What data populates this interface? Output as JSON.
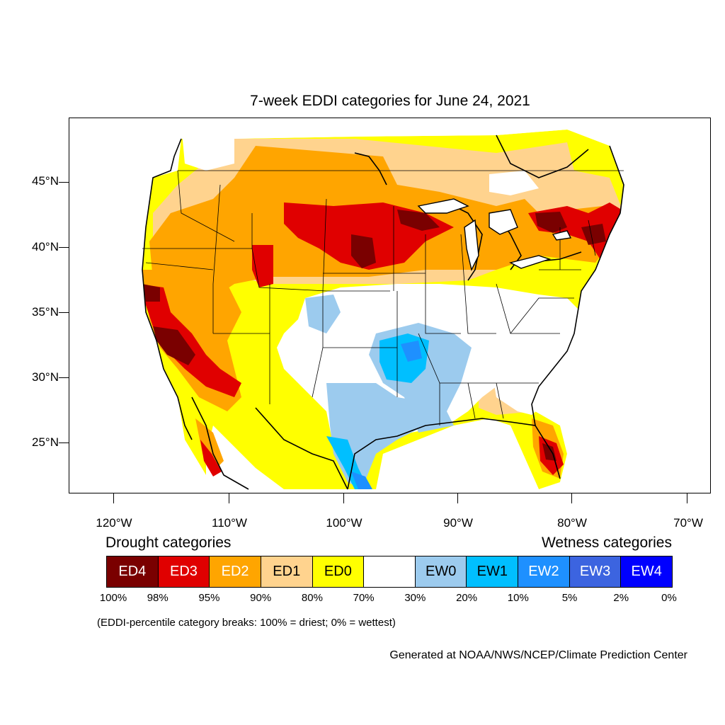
{
  "title": "7-week EDDI categories for June 24, 2021",
  "lat_labels": [
    "45°N",
    "40°N",
    "35°N",
    "30°N",
    "25°N"
  ],
  "lon_labels": [
    "120°W",
    "110°W",
    "100°W",
    "90°W",
    "80°W",
    "70°W"
  ],
  "legend": {
    "drought_heading": "Drought categories",
    "wetness_heading": "Wetness categories",
    "categories": [
      {
        "label": "ED4",
        "color": "#7a0000",
        "text_color": "#ffffff"
      },
      {
        "label": "ED3",
        "color": "#e00000",
        "text_color": "#ffffff"
      },
      {
        "label": "ED2",
        "color": "#ffa500",
        "text_color": "#ffffff"
      },
      {
        "label": "ED1",
        "color": "#ffd38e",
        "text_color": "#000000"
      },
      {
        "label": "ED0",
        "color": "#ffff00",
        "text_color": "#000000"
      },
      {
        "label": "",
        "color": "#ffffff",
        "text_color": "#000000"
      },
      {
        "label": "EW0",
        "color": "#9ccbee",
        "text_color": "#000000"
      },
      {
        "label": "EW1",
        "color": "#00bfff",
        "text_color": "#000000"
      },
      {
        "label": "EW2",
        "color": "#1e90ff",
        "text_color": "#ffffff"
      },
      {
        "label": "EW3",
        "color": "#3c64e0",
        "text_color": "#ffffff"
      },
      {
        "label": "EW4",
        "color": "#0000ff",
        "text_color": "#ffffff"
      }
    ],
    "breaks": [
      "100%",
      "98%",
      "95%",
      "90%",
      "80%",
      "70%",
      "30%",
      "20%",
      "10%",
      "5%",
      "2%",
      "0%"
    ],
    "break_note": "(EDDI-percentile category breaks: 100% = driest; 0% = wettest)"
  },
  "credit": "Generated at NOAA/NWS/NCEP/Climate Prediction Center"
}
